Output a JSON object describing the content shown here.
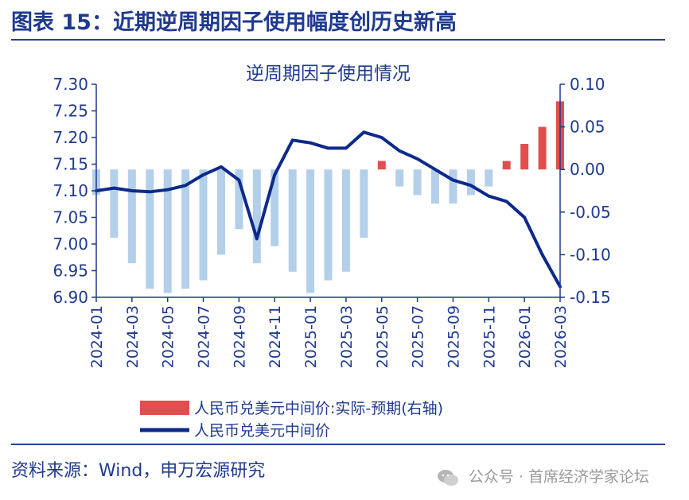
{
  "header": {
    "title": "图表 15：近期逆周期因子使用幅度创历史新高"
  },
  "footer": {
    "source": "资料来源：Wind，申万宏源研究",
    "watermark": "公众号 · 首席经济学家论坛"
  },
  "colors": {
    "line": "#0d2a8a",
    "bar_positive": "#e04e4e",
    "bar_negative": "#b3cfe9",
    "axis": "#1f3a8f"
  },
  "chart_data": {
    "type": "line",
    "title": "逆周期因子使用情况",
    "x_ticks": [
      "2024-01",
      "2024-03",
      "2024-05",
      "2024-07",
      "2024-09",
      "2024-11",
      "2025-01",
      "2025-03",
      "2025-05",
      "2025-07",
      "2025-09",
      "2025-11",
      "2026-01",
      "2026-03"
    ],
    "x_range": [
      "2024-01",
      "2026-03"
    ],
    "y_left": {
      "ticks": [
        "7.30",
        "7.25",
        "7.20",
        "7.15",
        "7.10",
        "7.05",
        "7.00",
        "6.95",
        "6.90"
      ],
      "range": [
        6.9,
        7.3
      ]
    },
    "y_right": {
      "ticks": [
        "0.10",
        "0.05",
        "0.00",
        "-0.05",
        "-0.10",
        "-0.15"
      ],
      "range": [
        -0.15,
        0.1
      ]
    },
    "grid": false,
    "legend_position": "bottom",
    "series": [
      {
        "name": "人民币兑美元中间价:实际-预期(右轴)",
        "type": "bar",
        "axis": "right",
        "x": [
          "2024-01",
          "2024-02",
          "2024-03",
          "2024-04",
          "2024-05",
          "2024-06",
          "2024-07",
          "2024-08",
          "2024-09",
          "2024-10",
          "2024-11",
          "2024-12",
          "2025-01",
          "2025-02",
          "2025-03",
          "2025-04",
          "2025-05",
          "2025-06",
          "2025-07",
          "2025-08",
          "2025-09",
          "2025-10",
          "2025-11",
          "2025-12",
          "2026-01",
          "2026-02",
          "2026-03"
        ],
        "values": [
          -0.03,
          -0.08,
          -0.11,
          -0.14,
          -0.145,
          -0.14,
          -0.13,
          -0.1,
          -0.07,
          -0.11,
          -0.09,
          -0.12,
          -0.145,
          -0.13,
          -0.12,
          -0.08,
          0.01,
          -0.02,
          -0.03,
          -0.04,
          -0.04,
          -0.03,
          -0.02,
          0.01,
          0.03,
          0.05,
          0.08
        ]
      },
      {
        "name": "人民币兑美元中间价",
        "type": "line",
        "axis": "left",
        "x": [
          "2024-01",
          "2024-02",
          "2024-03",
          "2024-04",
          "2024-05",
          "2024-06",
          "2024-07",
          "2024-08",
          "2024-09",
          "2024-10",
          "2024-11",
          "2024-12",
          "2025-01",
          "2025-02",
          "2025-03",
          "2025-04",
          "2025-05",
          "2025-06",
          "2025-07",
          "2025-08",
          "2025-09",
          "2025-10",
          "2025-11",
          "2025-12",
          "2026-01",
          "2026-02",
          "2026-03"
        ],
        "values": [
          7.1,
          7.105,
          7.1,
          7.098,
          7.102,
          7.11,
          7.13,
          7.145,
          7.12,
          7.01,
          7.13,
          7.195,
          7.19,
          7.18,
          7.18,
          7.21,
          7.2,
          7.175,
          7.16,
          7.14,
          7.12,
          7.11,
          7.09,
          7.08,
          7.05,
          6.98,
          6.92
        ]
      }
    ]
  }
}
